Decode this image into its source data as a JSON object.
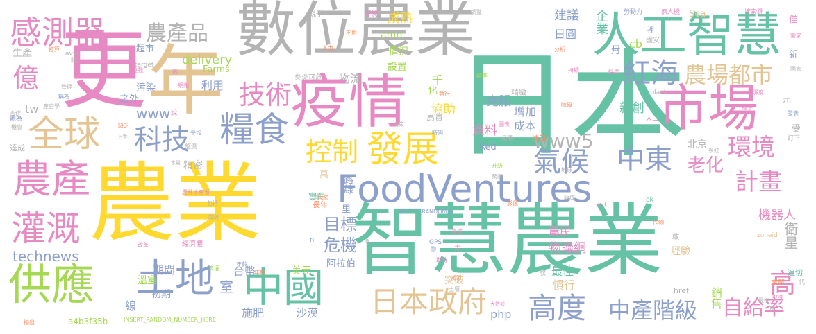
{
  "palette": {
    "green": "#66c2a5",
    "orange": "#fc8d62",
    "blue": "#8da0cb",
    "pink": "#e78ac3",
    "lime": "#a6d854",
    "yellow": "#ffd92f",
    "tan": "#e5c494",
    "gray": "#b3b3b3"
  },
  "words": [
    {
      "text": "農業",
      "color": "yellow"
    },
    {
      "text": "智慧農業",
      "color": "green"
    },
    {
      "text": "日本",
      "color": "green"
    },
    {
      "text": "數位農業",
      "color": "gray"
    },
    {
      "text": "更",
      "color": "pink"
    },
    {
      "text": "年",
      "color": "tan"
    },
    {
      "text": "人工智慧",
      "color": "green"
    },
    {
      "text": "疫情",
      "color": "pink"
    },
    {
      "text": "市場",
      "color": "pink"
    },
    {
      "text": "FoodVentures",
      "color": "blue"
    },
    {
      "text": "糧食",
      "color": "blue"
    },
    {
      "text": "全球",
      "color": "tan"
    },
    {
      "text": "農產",
      "color": "pink"
    },
    {
      "text": "土地",
      "color": "blue"
    },
    {
      "text": "中國",
      "color": "green"
    },
    {
      "text": "供應",
      "color": "lime"
    },
    {
      "text": "灌溉",
      "color": "pink"
    },
    {
      "text": "發展",
      "color": "yellow"
    },
    {
      "text": "感測器",
      "color": "pink"
    },
    {
      "text": "日本政府",
      "color": "tan"
    },
    {
      "text": "控制",
      "color": "yellow"
    },
    {
      "text": "科技",
      "color": "blue"
    },
    {
      "text": "億",
      "color": "pink"
    },
    {
      "text": "技術",
      "color": "pink"
    },
    {
      "text": "紅海",
      "color": "blue"
    },
    {
      "text": "農場都市",
      "color": "tan"
    },
    {
      "text": "農產品",
      "color": "gray"
    },
    {
      "text": "氣候",
      "color": "blue"
    },
    {
      "text": "中東",
      "color": "blue"
    },
    {
      "text": "環境",
      "color": "pink"
    },
    {
      "text": "高度",
      "color": "blue"
    },
    {
      "text": "中產階級",
      "color": "blue"
    },
    {
      "text": "計畫",
      "color": "pink"
    },
    {
      "text": "自給率",
      "color": "pink"
    },
    {
      "text": "高",
      "color": "pink"
    },
    {
      "text": "老化",
      "color": "pink"
    },
    {
      "text": "www5",
      "color": "gray"
    },
    {
      "text": "technews",
      "color": "blue"
    },
    {
      "text": "目標",
      "color": "blue"
    },
    {
      "text": "危機",
      "color": "blue"
    },
    {
      "text": "物聯網",
      "color": "pink"
    },
    {
      "text": "衛星",
      "color": "gray"
    },
    {
      "text": "機器人",
      "color": "pink"
    },
    {
      "text": "delivery",
      "color": "lime"
    },
    {
      "text": "www",
      "color": "blue"
    },
    {
      "text": "tw",
      "color": "gray"
    },
    {
      "text": "建議",
      "color": "blue"
    },
    {
      "text": "企業",
      "color": "green"
    },
    {
      "text": "成熟",
      "color": "yellow"
    },
    {
      "text": "cb",
      "color": "lime"
    },
    {
      "text": "日圓",
      "color": "blue"
    },
    {
      "text": "克服",
      "color": "blue"
    },
    {
      "text": "增加",
      "color": "blue"
    },
    {
      "text": "成本",
      "color": "blue"
    },
    {
      "text": "資料",
      "color": "pink"
    },
    {
      "text": "協助",
      "color": "yellow"
    },
    {
      "text": "新創",
      "color": "green"
    },
    {
      "text": "北京",
      "color": "gray"
    },
    {
      "text": "精密",
      "color": "gray"
    },
    {
      "text": "路線",
      "color": "blue"
    },
    {
      "text": "期間",
      "color": "blue"
    },
    {
      "text": "初期",
      "color": "blue"
    },
    {
      "text": "施肥",
      "color": "blue"
    },
    {
      "text": "沙漠",
      "color": "blue"
    },
    {
      "text": "阿拉伯",
      "color": "blue"
    },
    {
      "text": "美元",
      "color": "lime"
    },
    {
      "text": "台幣",
      "color": "blue"
    },
    {
      "text": "室",
      "color": "blue"
    },
    {
      "text": "溫室",
      "color": "lime"
    },
    {
      "text": "線",
      "color": "blue"
    },
    {
      "text": "php",
      "color": "blue"
    },
    {
      "text": "銷售",
      "color": "lime"
    },
    {
      "text": "慣行",
      "color": "tan"
    },
    {
      "text": "最佳",
      "color": "green"
    },
    {
      "text": "經驗",
      "color": "tan"
    },
    {
      "text": "農民",
      "color": "pink"
    },
    {
      "text": "突破",
      "color": "tan"
    },
    {
      "text": "污染",
      "color": "blue"
    },
    {
      "text": "利用",
      "color": "blue"
    },
    {
      "text": "之外",
      "color": "blue"
    },
    {
      "text": "物流",
      "color": "gray"
    },
    {
      "text": "設置",
      "color": "lime"
    },
    {
      "text": "情況",
      "color": "lime"
    },
    {
      "text": "amp",
      "color": "lime"
    },
    {
      "text": "Farms",
      "color": "lime"
    },
    {
      "text": "超市",
      "color": "blue"
    },
    {
      "text": "生產",
      "color": "gray"
    },
    {
      "text": "月",
      "color": "blue"
    },
    {
      "text": "千",
      "color": "lime"
    },
    {
      "text": "化",
      "color": "lime"
    },
    {
      "text": "Red",
      "color": "blue"
    },
    {
      "text": "Sea",
      "color": "tan"
    },
    {
      "text": "實在",
      "color": "green"
    },
    {
      "text": "長年",
      "color": "orange"
    },
    {
      "text": "里",
      "color": "blue"
    },
    {
      "text": "萬",
      "color": "tan"
    },
    {
      "text": "元",
      "color": "gray"
    },
    {
      "text": "受",
      "color": "gray"
    },
    {
      "text": "追切",
      "color": "green"
    },
    {
      "text": "末釐",
      "color": "orange"
    },
    {
      "text": "a4b3f35b",
      "color": "lime"
    },
    {
      "text": "INSERT_RANDOM_NUMBER_HERE",
      "color": "lime"
    },
    {
      "text": "INSERT_RANDOM_N",
      "color": "blue"
    },
    {
      "text": "href",
      "color": "gray"
    },
    {
      "text": "zoneid",
      "color": "tan"
    },
    {
      "text": "GPS",
      "color": "blue"
    },
    {
      "text": "ck",
      "color": "green"
    },
    {
      "text": "src",
      "color": "blue"
    },
    {
      "text": "_blank",
      "color": "gray"
    },
    {
      "text": "target",
      "color": "gray"
    },
    {
      "text": "avw",
      "color": "gray"
    },
    {
      "text": "n",
      "color": "blue"
    },
    {
      "text": "a",
      "color": "gray"
    },
    {
      "text": "競爭",
      "color": "gray"
    },
    {
      "text": "卑微",
      "color": "pink"
    },
    {
      "text": "不用",
      "color": "orange"
    },
    {
      "text": "人力",
      "color": "orange"
    },
    {
      "text": "調整",
      "color": "gray"
    },
    {
      "text": "勞動力",
      "color": "blue"
    },
    {
      "text": "無人機",
      "color": "pink"
    },
    {
      "text": "接索跳",
      "color": "pink"
    },
    {
      "text": "僅",
      "color": "pink"
    },
    {
      "text": "新",
      "color": "blue"
    },
    {
      "text": "國安",
      "color": "gray"
    },
    {
      "text": "裡",
      "color": "blue"
    },
    {
      "text": "分析",
      "color": "orange"
    },
    {
      "text": "持續",
      "color": "pink"
    },
    {
      "text": "經歷",
      "color": "pink"
    },
    {
      "text": "溫濕度",
      "color": "pink"
    },
    {
      "text": "種子",
      "color": "pink"
    },
    {
      "text": "發表",
      "color": "blue"
    },
    {
      "text": "訂下",
      "color": "gray"
    },
    {
      "text": "人口",
      "color": "pink"
    },
    {
      "text": "障礙",
      "color": "orange"
    },
    {
      "text": "進口",
      "color": "orange"
    },
    {
      "text": "圖表",
      "color": "pink"
    },
    {
      "text": "品種",
      "color": "gray"
    },
    {
      "text": "系統",
      "color": "gray"
    },
    {
      "text": "升級",
      "color": "lime"
    },
    {
      "text": "地球",
      "color": "gray"
    },
    {
      "text": "藍圖",
      "color": "gray"
    },
    {
      "text": "影像",
      "color": "orange"
    },
    {
      "text": "收成",
      "color": "gray"
    },
    {
      "text": "人工",
      "color": "pink"
    },
    {
      "text": "作物",
      "color": "orange"
    },
    {
      "text": "敢",
      "color": "gray"
    },
    {
      "text": "關聯",
      "color": "gray"
    },
    {
      "text": "大數據",
      "color": "pink"
    },
    {
      "text": "土壤",
      "color": "gray"
    },
    {
      "text": "透氣",
      "color": "orange"
    },
    {
      "text": "走",
      "color": "pink"
    },
    {
      "text": "高速",
      "color": "pink"
    },
    {
      "text": "即時",
      "color": "pink"
    },
    {
      "text": "年齡",
      "color": "blue"
    },
    {
      "text": "年輕",
      "color": "orange"
    },
    {
      "text": "滴灌",
      "color": "lime"
    },
    {
      "text": "經濟體",
      "color": "pink"
    },
    {
      "text": "改革",
      "color": "pink"
    },
    {
      "text": "包括",
      "color": "gray"
    },
    {
      "text": "農林水產省",
      "color": "pink"
    },
    {
      "text": "有助於",
      "color": "orange"
    },
    {
      "text": "水量",
      "color": "gray"
    },
    {
      "text": "達成",
      "color": "gray"
    },
    {
      "text": "缺乏",
      "color": "orange"
    },
    {
      "text": "監測",
      "color": "gray"
    },
    {
      "text": "平均",
      "color": "blue"
    },
    {
      "text": "上手",
      "color": "gray"
    },
    {
      "text": "說",
      "color": "pink"
    },
    {
      "text": "網路",
      "color": "pink"
    },
    {
      "text": "機會",
      "color": "gray"
    },
    {
      "text": "合作",
      "color": "gray"
    },
    {
      "text": "觀為",
      "color": "blue"
    },
    {
      "text": "產官學",
      "color": "gray"
    },
    {
      "text": "稱為",
      "color": "blue"
    },
    {
      "text": "管理",
      "color": "gray"
    },
    {
      "text": "隨",
      "color": "gray"
    },
    {
      "text": "打算",
      "color": "orange"
    },
    {
      "text": "遊戲",
      "color": "pink"
    },
    {
      "text": "炎炎可危",
      "color": "gray"
    },
    {
      "text": "決策",
      "color": "gray"
    },
    {
      "text": "時間",
      "color": "blue"
    },
    {
      "text": "執行",
      "color": "orange"
    },
    {
      "text": "昂貴",
      "color": "gray"
    },
    {
      "text": "精緻",
      "color": "gray"
    },
    {
      "text": "精準",
      "color": "lime"
    },
    {
      "text": "物",
      "color": "blue"
    },
    {
      "text": "震",
      "color": "pink"
    },
    {
      "text": "敬",
      "color": "gray"
    },
    {
      "text": "最後",
      "color": "gray"
    },
    {
      "text": "img",
      "color": "pink"
    },
    {
      "text": "使",
      "color": "gray"
    },
    {
      "text": "指出",
      "color": "orange"
    },
    {
      "text": "代",
      "color": "gray"
    },
    {
      "text": "國家",
      "color": "gray"
    },
    {
      "text": "需求",
      "color": "pink"
    }
  ]
}
